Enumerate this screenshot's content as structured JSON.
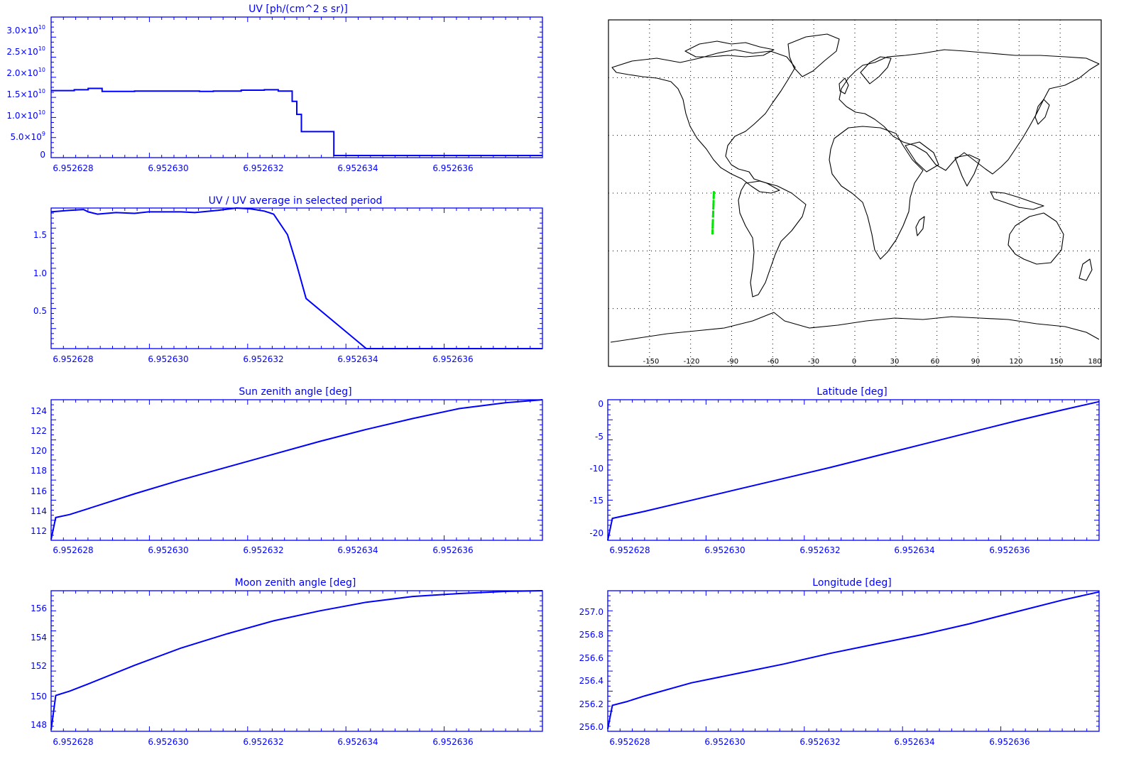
{
  "colors": {
    "axis": "#0000ff",
    "series": "#0000ff",
    "map_outline": "#000000",
    "map_grid": "#000000",
    "track": "#00e600"
  },
  "chart_data": [
    {
      "id": "uv",
      "type": "line",
      "title": "UV [ph/(cm^2 s sr)]",
      "xlabel": "",
      "ylabel": "",
      "xlim": [
        6.9526272,
        6.9526378
      ],
      "ylim": [
        -500000000.0,
        32000000000.0
      ],
      "x_tick_labels": [
        "6.952628",
        "6.952630",
        "6.952632",
        "6.952634",
        "6.952636"
      ],
      "y_tick_labels": [
        {
          "mantissa": "3.0×10",
          "exp": "10"
        },
        {
          "mantissa": "2.5×10",
          "exp": "10"
        },
        {
          "mantissa": "2.0×10",
          "exp": "10"
        },
        {
          "mantissa": "1.5×10",
          "exp": "10"
        },
        {
          "mantissa": "1.0×10",
          "exp": "10"
        },
        {
          "mantissa": "5.0×10",
          "exp": "9"
        },
        {
          "mantissa": "0",
          "exp": ""
        }
      ],
      "step": true,
      "x": [
        6.9526272,
        6.9526277,
        6.952628,
        6.9526283,
        6.952629,
        6.95263,
        6.9526304,
        6.9526307,
        6.9526313,
        6.9526318,
        6.9526321,
        6.9526324,
        6.9526325,
        6.9526326,
        6.9526333,
        6.9526378
      ],
      "y": [
        15000000000.0,
        15200000000.0,
        15500000000.0,
        14800000000.0,
        14900000000.0,
        14900000000.0,
        14800000000.0,
        14900000000.0,
        15100000000.0,
        15200000000.0,
        14900000000.0,
        12500000000.0,
        9500000000.0,
        5500000000.0,
        0,
        0
      ]
    },
    {
      "id": "uv_ratio",
      "type": "line",
      "title": "UV / UV average in selected period",
      "xlabel": "",
      "ylabel": "",
      "xlim": [
        6.9526272,
        6.9526378
      ],
      "ylim": [
        0.0,
        1.85
      ],
      "x_tick_labels": [
        "6.952628",
        "6.952630",
        "6.952632",
        "6.952634",
        "6.952636"
      ],
      "y_tick_labels": [
        "1.5",
        "1.0",
        "0.5"
      ],
      "x": [
        6.9526272,
        6.9526276,
        6.9526279,
        6.952628,
        6.9526282,
        6.9526286,
        6.952629,
        6.9526293,
        6.95263,
        6.9526303,
        6.9526308,
        6.9526312,
        6.9526315,
        6.9526318,
        6.952632,
        6.9526323,
        6.9526325,
        6.9526327,
        6.952634,
        6.9526378
      ],
      "y": [
        1.8,
        1.82,
        1.83,
        1.8,
        1.77,
        1.79,
        1.78,
        1.8,
        1.8,
        1.79,
        1.82,
        1.85,
        1.84,
        1.81,
        1.77,
        1.5,
        1.1,
        0.66,
        0.0,
        0.0
      ]
    },
    {
      "id": "sza",
      "type": "line",
      "title": "Sun zenith angle [deg]",
      "xlabel": "",
      "ylabel": "",
      "xlim": [
        6.9526272,
        6.9526378
      ],
      "ylim": [
        111.0,
        125.2
      ],
      "x_tick_labels": [
        "6.952628",
        "6.952630",
        "6.952632",
        "6.952634",
        "6.952636"
      ],
      "y_tick_labels": [
        "124",
        "122",
        "120",
        "118",
        "116",
        "114",
        "112"
      ],
      "x": [
        6.9526272,
        6.9526273,
        6.9526276,
        6.952628,
        6.952629,
        6.95263,
        6.952631,
        6.952632,
        6.952633,
        6.952634,
        6.952635,
        6.952636,
        6.952637,
        6.9526378
      ],
      "y": [
        111.1,
        113.3,
        113.6,
        114.2,
        115.7,
        117.1,
        118.4,
        119.7,
        121.0,
        122.2,
        123.3,
        124.3,
        124.9,
        125.2
      ]
    },
    {
      "id": "latitude",
      "type": "line",
      "title": "Latitude [deg]",
      "xlabel": "",
      "ylabel": "",
      "xlim": [
        6.9526272,
        6.9526378
      ],
      "ylim": [
        -21.0,
        0.8
      ],
      "x_tick_labels": [
        "6.952628",
        "6.952630",
        "6.952632",
        "6.952634",
        "6.952636"
      ],
      "y_tick_labels": [
        "0",
        "-5",
        "-10",
        "-15",
        "-20"
      ],
      "x": [
        6.9526272,
        6.9526273,
        6.952628,
        6.952629,
        6.95263,
        6.952631,
        6.952632,
        6.952633,
        6.952634,
        6.952635,
        6.952636,
        6.952637,
        6.9526378
      ],
      "y": [
        -21.0,
        -17.6,
        -16.5,
        -14.8,
        -13.1,
        -11.4,
        -9.7,
        -7.9,
        -6.1,
        -4.3,
        -2.5,
        -0.8,
        0.5
      ]
    },
    {
      "id": "mza",
      "type": "line",
      "title": "Moon zenith angle [deg]",
      "xlabel": "",
      "ylabel": "",
      "xlim": [
        6.9526272,
        6.9526378
      ],
      "ylim": [
        147.4,
        157.2
      ],
      "x_tick_labels": [
        "6.952628",
        "6.952630",
        "6.952632",
        "6.952634",
        "6.952636"
      ],
      "y_tick_labels": [
        "156",
        "154",
        "152",
        "150",
        "148"
      ],
      "x": [
        6.9526272,
        6.9526273,
        6.9526276,
        6.952628,
        6.952629,
        6.95263,
        6.952631,
        6.952632,
        6.952633,
        6.952634,
        6.952635,
        6.952636,
        6.952637,
        6.9526378
      ],
      "y": [
        147.5,
        149.9,
        150.2,
        150.7,
        152.0,
        153.2,
        154.2,
        155.1,
        155.8,
        156.4,
        156.8,
        157.0,
        157.15,
        157.2
      ]
    },
    {
      "id": "longitude",
      "type": "line",
      "title": "Longitude [deg]",
      "xlabel": "",
      "ylabel": "",
      "xlim": [
        6.9526272,
        6.9526378
      ],
      "ylim": [
        255.98,
        257.17
      ],
      "x_tick_labels": [
        "6.952628",
        "6.952630",
        "6.952632",
        "6.952634",
        "6.952636"
      ],
      "y_tick_labels": [
        "257.0",
        "256.8",
        "256.6",
        "256.4",
        "256.2",
        "256.0"
      ],
      "x": [
        6.9526272,
        6.9526273,
        6.9526276,
        6.952628,
        6.952629,
        6.95263,
        6.952631,
        6.952632,
        6.952633,
        6.952634,
        6.952635,
        6.952636,
        6.952637,
        6.9526378
      ],
      "y": [
        256.0,
        256.2,
        256.23,
        256.28,
        256.39,
        256.47,
        256.55,
        256.64,
        256.72,
        256.8,
        256.89,
        256.99,
        257.09,
        257.16
      ]
    },
    {
      "id": "map",
      "type": "map",
      "title": "",
      "x_tick_labels": [
        "-150",
        "-120",
        "-90",
        "-60",
        "-30",
        "0",
        "30",
        "60",
        "90",
        "120",
        "150",
        "180"
      ],
      "x": [
        -150,
        -120,
        -90,
        -60,
        -30,
        0,
        30,
        60,
        90,
        120,
        150,
        180
      ],
      "lon_range": [
        -180,
        180
      ],
      "lat_range": [
        -90,
        90
      ],
      "grid": true,
      "track": {
        "lon": [
          -103.0,
          -103.1,
          -103.2,
          -103.3,
          -103.4,
          -103.5,
          -103.6,
          -103.7,
          -103.8,
          -103.9,
          -104.0
        ],
        "lat": [
          0.5,
          -2.0,
          -4.0,
          -6.0,
          -8.0,
          -10.0,
          -12.0,
          -14.0,
          -16.0,
          -18.0,
          -21.0
        ]
      }
    }
  ]
}
